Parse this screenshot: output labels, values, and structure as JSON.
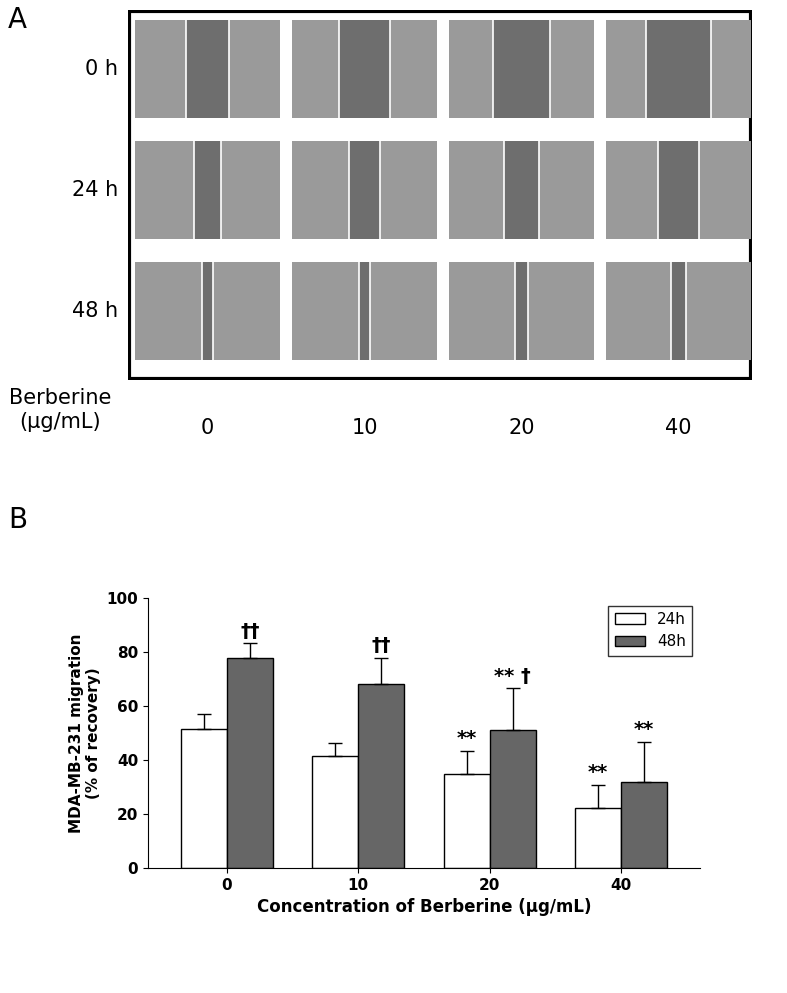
{
  "panel_a": {
    "label": "A",
    "rows": [
      "0 h",
      "24 h",
      "48 h"
    ],
    "columns_title": "Berberine\n(μg/mL)",
    "columns": [
      "0",
      "10",
      "20",
      "40"
    ]
  },
  "chart_data": {
    "type": "bar",
    "panel_label": "B",
    "categories": [
      "0",
      "10",
      "20",
      "40"
    ],
    "x_label": "Concentration of Berberine (μg/mL)",
    "y_label": "MDA-MB-231 migration\n(% of recovery)",
    "ylim": [
      0,
      100
    ],
    "yticks": [
      0,
      20,
      40,
      60,
      80,
      100
    ],
    "legend": "upper right",
    "grid": false,
    "series": [
      {
        "name": "24h",
        "color": "#ffffff",
        "values": [
          51.5,
          41.5,
          35,
          22.3
        ],
        "errors": [
          5.5,
          4.7,
          8.3,
          8.5
        ],
        "annotations": [
          null,
          null,
          "**",
          "**"
        ]
      },
      {
        "name": "48h",
        "color": "#666666",
        "values": [
          77.7,
          68.3,
          51,
          32
        ],
        "errors": [
          5.5,
          9.5,
          15.5,
          14.8
        ],
        "annotations": [
          "††",
          "††",
          "** †",
          "**"
        ]
      }
    ]
  }
}
